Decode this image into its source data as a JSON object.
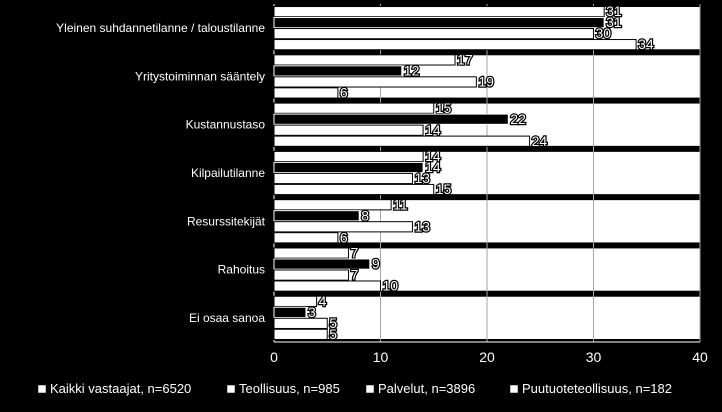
{
  "chart_data": {
    "type": "bar",
    "orientation": "horizontal",
    "title": "",
    "xlabel": "",
    "ylabel": "",
    "xlim": [
      0,
      40
    ],
    "x_ticks": [
      "0",
      "10",
      "20",
      "30",
      "40"
    ],
    "grid": true,
    "legend_position": "bottom",
    "categories": [
      "Yleinen suhdannetilanne / taloustilanne",
      "Yritystoiminnan sääntely",
      "Kustannustaso",
      "Kilpailutilanne",
      "Resurssitekijät",
      "Rahoitus",
      "Ei osaa sanoa"
    ],
    "series": [
      {
        "name": "Kaikki vastaajat, n=6520",
        "values": [
          31,
          17,
          15,
          14,
          11,
          7,
          4
        ]
      },
      {
        "name": "Teollisuus, n=985",
        "values": [
          31,
          12,
          22,
          14,
          8,
          9,
          3
        ]
      },
      {
        "name": "Palvelut, n=3896",
        "values": [
          30,
          19,
          14,
          13,
          13,
          7,
          5
        ]
      },
      {
        "name": "Puutuoteteollisuus, n=182",
        "values": [
          34,
          6,
          24,
          15,
          6,
          10,
          5
        ]
      }
    ],
    "colors": {
      "background": "#000000",
      "plot_area": "#000000",
      "band_fill": "#ffffff",
      "gridline": "#a6a6a6",
      "text": "#ffffff",
      "series": [
        "#ffffff",
        "#000000",
        "#ffffff",
        "#ffffff"
      ],
      "series_stroke": [
        "#000000",
        "#ffffff",
        "#000000",
        "#000000"
      ]
    }
  }
}
